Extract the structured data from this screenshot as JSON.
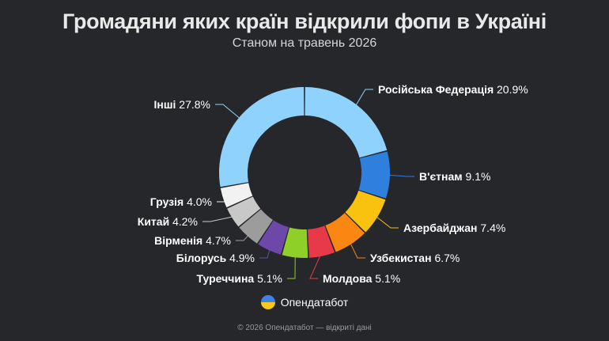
{
  "title": "Громадяни яких країн відкрили фопи в Україні",
  "subtitle": "Станом на травень 2026",
  "brand": {
    "name": "Опендатабот",
    "logo_icon": "opendatabot-logo-icon"
  },
  "footer": "© 2026 Опендатабот — відкриті дані",
  "chart_data": {
    "type": "pie",
    "donut": true,
    "slices": [
      {
        "name": "Російська Федерація",
        "value": 20.9,
        "label": "20.9%",
        "color": "#8fd2fd"
      },
      {
        "name": "В'єтнам",
        "value": 9.1,
        "label": "9.1%",
        "color": "#2f7fdf"
      },
      {
        "name": "Азербайджан",
        "value": 7.4,
        "label": "7.4%",
        "color": "#f8c20e"
      },
      {
        "name": "Узбекистан",
        "value": 6.7,
        "label": "6.7%",
        "color": "#f98711"
      },
      {
        "name": "Молдова",
        "value": 5.1,
        "label": "5.1%",
        "color": "#e8394a"
      },
      {
        "name": "Туреччина",
        "value": 5.1,
        "label": "5.1%",
        "color": "#8fd028"
      },
      {
        "name": "Білорусь",
        "value": 4.9,
        "label": "4.9%",
        "color": "#6d48a8"
      },
      {
        "name": "Вірменія",
        "value": 4.7,
        "label": "4.7%",
        "color": "#9c9c9c"
      },
      {
        "name": "Китай",
        "value": 4.2,
        "label": "4.2%",
        "color": "#c8c8c8"
      },
      {
        "name": "Грузія",
        "value": 4.0,
        "label": "4.0%",
        "color": "#f2f2f2"
      },
      {
        "name": "Інші",
        "value": 27.8,
        "label": "27.8%",
        "color": "#8fd2fd"
      }
    ]
  }
}
